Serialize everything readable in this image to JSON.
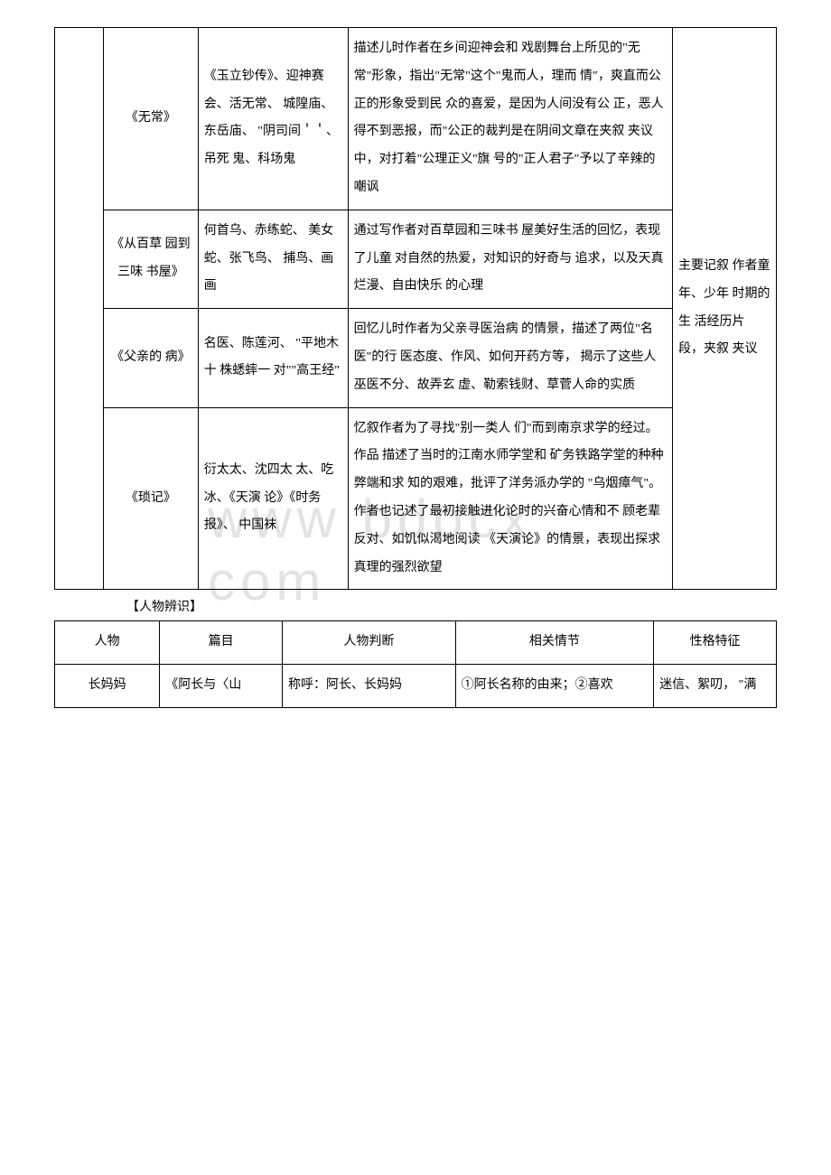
{
  "table1": {
    "rows": [
      {
        "title": "《无常》",
        "keywords": "《玉立钞传》、迎神赛会、活无常、 城隍庙、东岳庙、 \"阴司间＇＇、吊死 鬼、科场鬼",
        "desc": "描述儿时作者在乡间迎神会和 戏剧舞台上所见的\"无常\"形象，指出\"无常\"这个\"鬼而人，理而 情″，爽直而公正的形象受到民 众的喜爱，是因为人间没有公 正，恶人得不到恶报，而\"公正的裁判是在阴间文章在夹叙 夹议中，对打着\"公理正义''旗 号的\"正人君子″予以了辛辣的 嘲讽"
      },
      {
        "title": "《从百草 园到三味 书屋》",
        "keywords": "何首乌、赤练蛇、 美女蛇、张飞鸟、 捕鸟、画画",
        "desc": "通过写作者对百草园和三味书 屋美好生活的回忆，表现了儿童 对自然的热爱，对知识的好奇与 追求，以及天真烂漫、自由快乐 的心理"
      },
      {
        "title": "《父亲的 病》",
        "keywords": "名医、陈莲河、 \"平地木十 株蟋蟀一 对\"\"高王经\"",
        "desc": "回忆儿时作者为父亲寻医治病 的情景，描述了两位\"名医\"的行 医态度、作风、如何开药方等， 揭示了这些人巫医不分、故弄玄 虚、勒索钱财、草菅人命的实质"
      },
      {
        "title": "《琐记》",
        "keywords": "衍太太、沈四太 太、吃冰、《天演 论》《时务报》、 中国袜",
        "desc": "忆叙作者为了寻找\"别一类人 们\"而到南京求学的经过。作品 描述了当时的江南水师学堂和 矿务铁路学堂的种种弊端和求 知的艰难，批评了洋务派办学的 \"乌烟瘴气\"。作者也记述了最初接触进化论时的兴奋心情和不 顾老辈反对、如饥似渴地阅读 《天演论》的情景，表现出探求 真理的强烈欲望"
      }
    ],
    "sideNote": "主要记叙 作者童 年、少年 时期的生 活经历片 段，夹叙 夹议"
  },
  "sectionLabel": "【人物辨识】",
  "table2": {
    "headers": {
      "c1": "人物",
      "c2": "篇目",
      "c3": "人物判断",
      "c4": "相关情节",
      "c5": "性格特征"
    },
    "row": {
      "c1": "长妈妈",
      "c2": "《阿长与〈山",
      "c3": "称呼：阿长、长妈妈",
      "c4": "①阿长名称的由来；②喜欢",
      "c5": "迷信、絮叨， \"满"
    }
  },
  "watermark": "www bdocx com"
}
